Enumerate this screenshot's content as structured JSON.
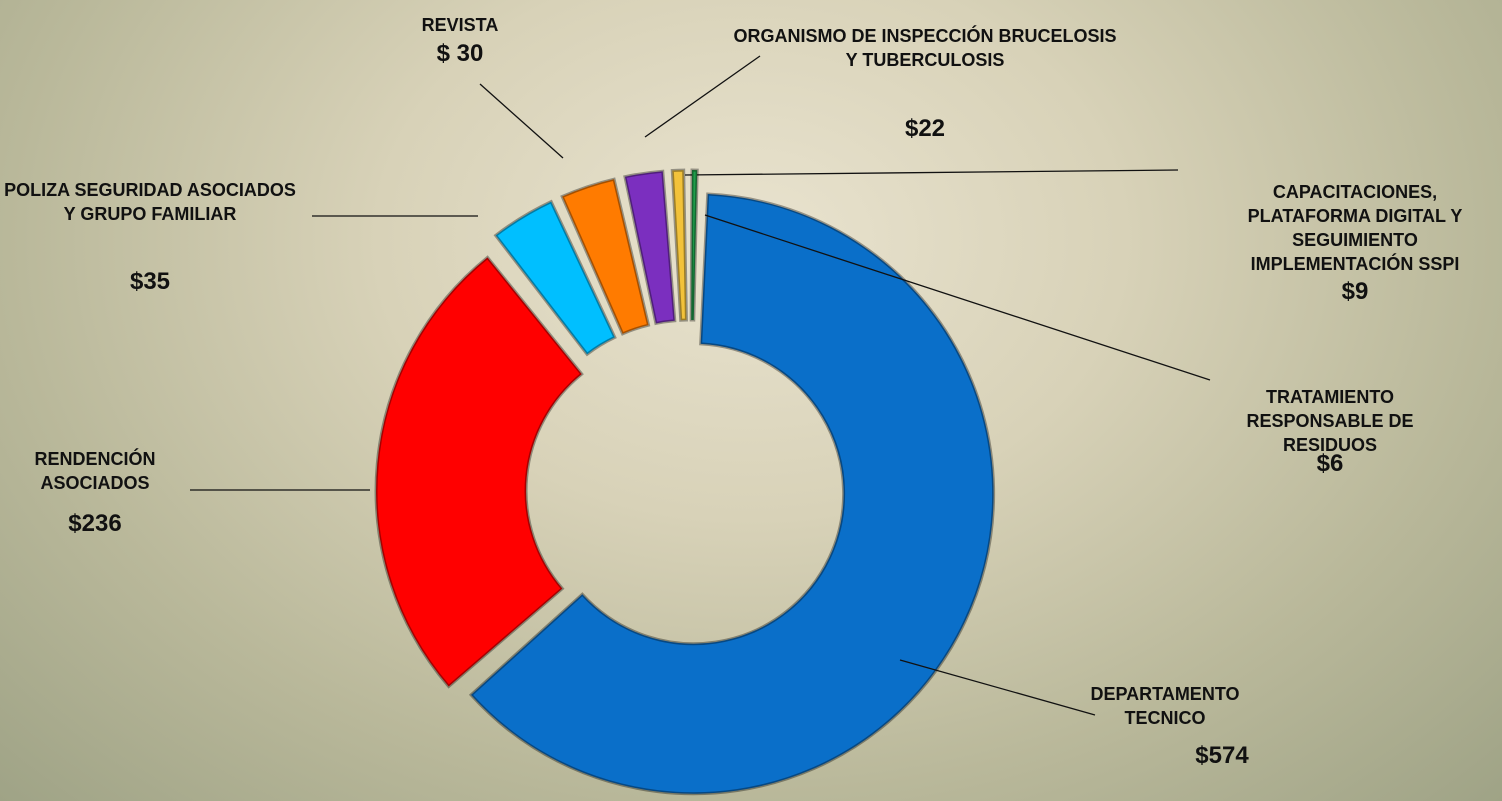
{
  "chart_data": {
    "type": "pie",
    "categories": [
      "DEPARTAMENTO TECNICO",
      "RENDENCIÓN ASOCIADOS",
      "POLIZA SEGURIDAD ASOCIADOS Y GRUPO FAMILIAR",
      "REVISTA",
      "ORGANISMO DE INSPECCIÓN BRUCELOSIS Y TUBERCULOSIS",
      "CAPACITACIONES, PLATAFORMA DIGITAL Y SEGUIMIENTO IMPLEMENTACIÓN SSPI",
      "TRATAMIENTO RESPONSABLE DE RESIDUOS"
    ],
    "values": [
      574,
      236,
      35,
      30,
      22,
      9,
      6
    ],
    "value_labels": [
      "$574",
      "$236",
      "$35",
      "$ 30",
      "$22",
      "$9",
      "$6"
    ],
    "colors": [
      "#0a6fc9",
      "#ff0000",
      "#00bfff",
      "#ff7b00",
      "#7b2fbf",
      "#f2c23a",
      "#1e9e4a"
    ]
  }
}
